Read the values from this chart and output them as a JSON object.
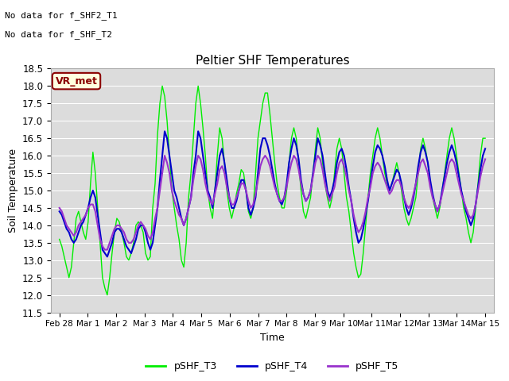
{
  "title": "Peltier SHF Temperatures",
  "xlabel": "Time",
  "ylabel": "Soil Temperature",
  "ylim": [
    11.5,
    18.5
  ],
  "yticks": [
    11.5,
    12.0,
    12.5,
    13.0,
    13.5,
    14.0,
    14.5,
    15.0,
    15.5,
    16.0,
    16.5,
    17.0,
    17.5,
    18.0,
    18.5
  ],
  "annotation1": "No data for f_SHF2_T1",
  "annotation2": "No data for f_SHF_T2",
  "legend_box_label": "VR_met",
  "bg_color": "#dcdcdc",
  "fig_color": "#ffffff",
  "line_colors": {
    "T3": "#00ee00",
    "T4": "#0000cd",
    "T5": "#9932cc"
  },
  "legend_labels": [
    "pSHF_T3",
    "pSHF_T4",
    "pSHF_T5"
  ],
  "xtick_labels": [
    "Feb 28",
    "Mar 1",
    "Mar 2",
    "Mar 3",
    "Mar 4",
    "Mar 5",
    "Mar 6",
    "Mar 7",
    "Mar 8",
    "Mar 9",
    "Mar 10",
    "Mar 11",
    "Mar 12",
    "Mar 13",
    "Mar 14",
    "Mar 15"
  ],
  "T3": [
    13.6,
    13.4,
    13.1,
    12.8,
    12.5,
    12.8,
    13.5,
    14.2,
    14.4,
    14.1,
    13.8,
    13.6,
    14.1,
    15.2,
    16.1,
    15.5,
    14.5,
    13.5,
    12.5,
    12.2,
    12.0,
    12.5,
    13.2,
    13.8,
    14.2,
    14.1,
    13.8,
    13.5,
    13.1,
    13.0,
    13.2,
    13.5,
    14.0,
    14.1,
    14.0,
    13.8,
    13.2,
    13.0,
    13.1,
    14.5,
    15.2,
    16.6,
    17.5,
    18.0,
    17.7,
    17.0,
    16.0,
    15.0,
    14.5,
    14.0,
    13.6,
    13.0,
    12.8,
    13.5,
    14.8,
    15.5,
    16.5,
    17.5,
    18.0,
    17.5,
    16.8,
    16.0,
    15.0,
    14.5,
    14.2,
    15.0,
    16.0,
    16.8,
    16.5,
    15.8,
    15.0,
    14.5,
    14.2,
    14.5,
    14.9,
    15.2,
    15.6,
    15.5,
    15.0,
    14.4,
    14.2,
    14.5,
    15.5,
    16.5,
    17.0,
    17.5,
    17.8,
    17.8,
    17.2,
    16.5,
    15.8,
    15.2,
    14.8,
    14.5,
    14.5,
    15.0,
    15.8,
    16.5,
    16.8,
    16.5,
    15.8,
    15.0,
    14.4,
    14.2,
    14.5,
    14.8,
    15.5,
    16.2,
    16.8,
    16.5,
    15.8,
    15.2,
    14.8,
    14.5,
    14.8,
    15.5,
    16.2,
    16.5,
    16.2,
    15.5,
    14.8,
    14.4,
    13.8,
    13.2,
    12.8,
    12.5,
    12.6,
    13.2,
    14.0,
    14.8,
    15.5,
    16.0,
    16.5,
    16.8,
    16.5,
    16.0,
    15.5,
    15.2,
    15.0,
    15.2,
    15.5,
    15.8,
    15.5,
    15.0,
    14.5,
    14.2,
    14.0,
    14.2,
    14.5,
    14.8,
    15.5,
    16.2,
    16.5,
    16.2,
    15.8,
    15.2,
    14.8,
    14.5,
    14.2,
    14.5,
    15.0,
    15.5,
    16.0,
    16.5,
    16.8,
    16.5,
    16.0,
    15.5,
    15.0,
    14.5,
    14.2,
    13.8,
    13.5,
    13.8,
    14.5,
    15.2,
    16.0,
    16.5,
    16.5
  ],
  "T4": [
    14.4,
    14.3,
    14.1,
    13.9,
    13.8,
    13.6,
    13.5,
    13.6,
    13.8,
    14.0,
    14.1,
    14.3,
    14.5,
    14.8,
    15.0,
    14.8,
    14.3,
    13.8,
    13.3,
    13.2,
    13.1,
    13.3,
    13.5,
    13.8,
    13.9,
    13.9,
    13.8,
    13.6,
    13.4,
    13.3,
    13.2,
    13.4,
    13.6,
    13.9,
    14.0,
    14.0,
    13.8,
    13.5,
    13.3,
    13.5,
    14.0,
    14.5,
    15.3,
    16.0,
    16.7,
    16.5,
    16.0,
    15.5,
    15.0,
    14.8,
    14.5,
    14.2,
    14.0,
    14.2,
    14.5,
    14.8,
    15.5,
    16.0,
    16.7,
    16.5,
    16.0,
    15.5,
    15.0,
    14.8,
    14.5,
    15.0,
    15.5,
    16.0,
    16.2,
    15.8,
    15.3,
    14.8,
    14.5,
    14.5,
    14.7,
    15.0,
    15.3,
    15.3,
    15.0,
    14.5,
    14.3,
    14.5,
    14.8,
    15.5,
    16.2,
    16.5,
    16.5,
    16.3,
    16.0,
    15.6,
    15.2,
    14.9,
    14.7,
    14.6,
    14.8,
    15.2,
    15.8,
    16.2,
    16.5,
    16.3,
    15.9,
    15.3,
    14.9,
    14.7,
    14.8,
    15.0,
    15.5,
    16.0,
    16.5,
    16.3,
    16.0,
    15.5,
    15.0,
    14.8,
    15.0,
    15.3,
    15.8,
    16.1,
    16.2,
    16.0,
    15.6,
    15.1,
    14.7,
    14.2,
    13.8,
    13.5,
    13.6,
    13.9,
    14.3,
    14.7,
    15.2,
    15.7,
    16.1,
    16.3,
    16.2,
    16.0,
    15.7,
    15.3,
    15.0,
    15.2,
    15.4,
    15.6,
    15.5,
    15.2,
    14.8,
    14.5,
    14.3,
    14.5,
    14.8,
    15.2,
    15.7,
    16.1,
    16.3,
    16.1,
    15.8,
    15.3,
    14.9,
    14.6,
    14.4,
    14.6,
    15.0,
    15.4,
    15.8,
    16.1,
    16.3,
    16.1,
    15.8,
    15.4,
    15.0,
    14.7,
    14.4,
    14.2,
    14.0,
    14.2,
    14.6,
    15.1,
    15.6,
    16.0,
    16.2
  ],
  "T5": [
    14.5,
    14.4,
    14.2,
    14.0,
    13.9,
    13.8,
    13.7,
    13.8,
    14.0,
    14.1,
    14.2,
    14.3,
    14.5,
    14.6,
    14.6,
    14.4,
    14.0,
    13.6,
    13.4,
    13.3,
    13.3,
    13.5,
    13.7,
    13.9,
    14.0,
    14.0,
    13.9,
    13.8,
    13.6,
    13.5,
    13.5,
    13.6,
    13.8,
    14.0,
    14.1,
    14.0,
    13.9,
    13.7,
    13.6,
    13.8,
    14.2,
    14.5,
    15.0,
    15.5,
    16.0,
    15.8,
    15.5,
    15.0,
    14.7,
    14.5,
    14.3,
    14.2,
    14.0,
    14.2,
    14.5,
    14.8,
    15.3,
    15.7,
    16.0,
    15.9,
    15.6,
    15.2,
    14.9,
    14.7,
    14.6,
    14.9,
    15.2,
    15.6,
    15.7,
    15.5,
    15.1,
    14.8,
    14.6,
    14.6,
    14.8,
    15.0,
    15.2,
    15.2,
    15.0,
    14.7,
    14.5,
    14.6,
    14.9,
    15.3,
    15.7,
    15.9,
    16.0,
    15.9,
    15.7,
    15.4,
    15.1,
    14.9,
    14.7,
    14.7,
    14.8,
    15.1,
    15.5,
    15.8,
    16.0,
    15.9,
    15.6,
    15.2,
    14.9,
    14.7,
    14.8,
    15.0,
    15.4,
    15.8,
    16.0,
    15.9,
    15.6,
    15.2,
    14.9,
    14.7,
    14.9,
    15.1,
    15.5,
    15.8,
    15.9,
    15.7,
    15.4,
    15.0,
    14.7,
    14.3,
    14.0,
    13.8,
    13.9,
    14.1,
    14.4,
    14.8,
    15.1,
    15.5,
    15.7,
    15.8,
    15.7,
    15.5,
    15.3,
    15.1,
    14.9,
    15.0,
    15.2,
    15.3,
    15.3,
    15.1,
    14.8,
    14.6,
    14.5,
    14.6,
    14.9,
    15.2,
    15.5,
    15.8,
    15.9,
    15.7,
    15.5,
    15.1,
    14.8,
    14.6,
    14.4,
    14.6,
    14.9,
    15.2,
    15.5,
    15.8,
    15.9,
    15.8,
    15.5,
    15.2,
    14.9,
    14.7,
    14.5,
    14.3,
    14.2,
    14.3,
    14.6,
    15.0,
    15.4,
    15.7,
    15.9
  ]
}
